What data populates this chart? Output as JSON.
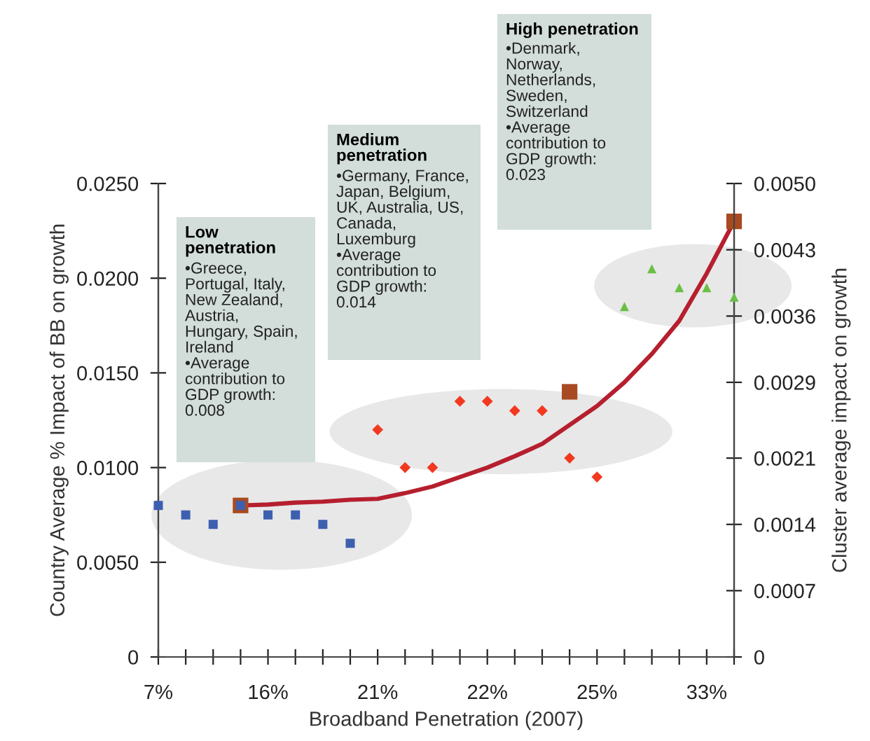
{
  "chart_data": {
    "type": "scatter",
    "xlabel": "Broadband Penetration (2007)",
    "ylabel": "Country Average % Impact of BB on growth",
    "y2label": "Cluster average impact on growth",
    "categories": [
      "7%",
      null,
      null,
      null,
      "16%",
      null,
      null,
      null,
      "21%",
      null,
      null,
      null,
      "22%",
      null,
      null,
      null,
      "25%",
      null,
      null,
      null,
      "33%",
      null
    ],
    "series": [
      {
        "marker": "square",
        "color": "#3d5fb0",
        "values": [
          0.008,
          0.0075,
          0.007,
          0.008,
          0.0075,
          0.0075,
          0.007,
          0.006,
          null,
          null,
          null,
          null,
          null,
          null,
          null,
          null,
          null,
          null,
          null,
          null,
          null,
          null
        ]
      },
      {
        "marker": "diamond",
        "color": "#f2391f",
        "values": [
          null,
          null,
          null,
          null,
          null,
          null,
          null,
          null,
          0.012,
          0.01,
          0.01,
          0.0135,
          0.0135,
          0.013,
          0.013,
          0.0105,
          0.0095,
          null,
          null,
          null,
          null,
          null
        ]
      },
      {
        "marker": "triangle",
        "color": "#6abf45",
        "values": [
          null,
          null,
          null,
          null,
          null,
          null,
          null,
          null,
          null,
          null,
          null,
          null,
          null,
          null,
          null,
          null,
          null,
          0.0185,
          0.0205,
          0.0195,
          0.0195,
          0.019
        ]
      },
      {
        "type": "line",
        "marker": "none",
        "axis": "y2",
        "color": "#b61f2e",
        "values": [
          null,
          null,
          null,
          0.0016,
          0.00161,
          0.00163,
          0.00164,
          0.00166,
          0.00167,
          0.00173,
          0.0018,
          0.0019,
          0.002,
          0.00212,
          0.00225,
          0.00245,
          0.00265,
          0.0029,
          0.0032,
          0.00355,
          0.00405,
          0.0046
        ]
      },
      {
        "marker": "square",
        "axis": "y2",
        "color": "#a84a22",
        "values": [
          null,
          null,
          null,
          0.0016,
          null,
          null,
          null,
          null,
          null,
          null,
          null,
          null,
          null,
          null,
          null,
          0.0028,
          null,
          null,
          null,
          null,
          null,
          0.0046
        ]
      }
    ],
    "ylim": [
      0,
      0.025
    ],
    "yticks": [
      0,
      {
        "value": 0.005,
        "label": "0.0050"
      },
      {
        "value": 0.01,
        "label": "0.0100"
      },
      {
        "value": 0.015,
        "label": "0.0150"
      },
      {
        "value": 0.02,
        "label": "0.0200"
      },
      {
        "value": 0.025,
        "label": "0.0250"
      }
    ],
    "y2lim": [
      0,
      0.005
    ],
    "y2ticks": [
      0,
      {
        "value": 0.0007,
        "label": "0.0007"
      },
      {
        "value": 0.0014,
        "label": "0.0014"
      },
      {
        "value": 0.0021,
        "label": "0.0021"
      },
      {
        "value": 0.0029,
        "label": "0.0029"
      },
      {
        "value": 0.0036,
        "label": "0.0036"
      },
      {
        "value": 0.0043,
        "label": "0.0043"
      },
      {
        "value": 0.005,
        "label": "0.0050"
      }
    ],
    "grid": false,
    "annotations": [
      "Low\npenetration",
      "•Greece,\nPortugal, Italy,\nNew Zealand,\nAustria,\nHungary, Spain,\nIreland\n•Average\ncontribution to\nGDP growth:\n0.008",
      "Medium\npenetration",
      "•Germany, France,\nJapan, Belgium,\nUK, Australia, US,\nCanada,\nLuxemburg\n•Average\ncontribution to\nGDP growth:\n0.014",
      "High penetration",
      "•Denmark,\nNorway,\nNetherlands,\nSweden,\nSwitzerland\n•Average\ncontribution to\nGDP growth:\n0.023"
    ]
  }
}
